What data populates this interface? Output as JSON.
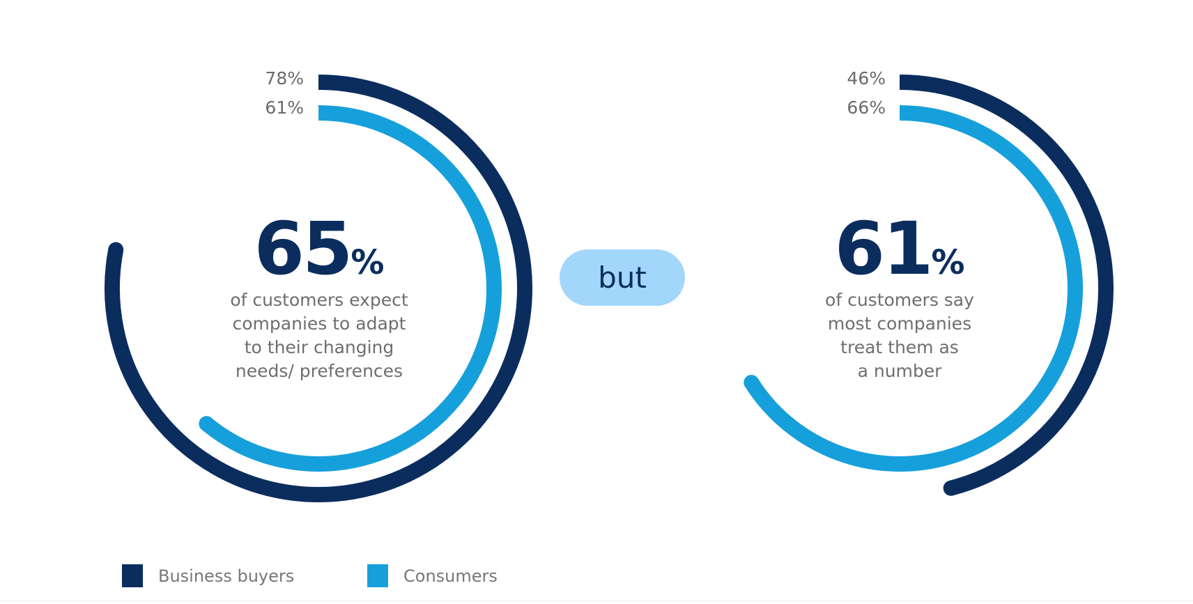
{
  "colors": {
    "business_buyers": "#0b2d5e",
    "consumers": "#16a0db",
    "but_pill": "#a3d6fb"
  },
  "chart_data": [
    {
      "type": "radial-bar",
      "headline": {
        "value": "65",
        "symbol": "%"
      },
      "description": [
        "of customers expect",
        "companies to adapt",
        "to their changing",
        "needs/ preferences"
      ],
      "series": [
        {
          "name": "Business buyers",
          "value": 78,
          "label": "78%"
        },
        {
          "name": "Consumers",
          "value": 61,
          "label": "61%"
        }
      ]
    },
    {
      "type": "radial-bar",
      "headline": {
        "value": "61",
        "symbol": "%"
      },
      "description": [
        "of customers say",
        "most companies",
        "treat them as",
        "a number"
      ],
      "series": [
        {
          "name": "Business buyers",
          "value": 46,
          "label": "46%"
        },
        {
          "name": "Consumers",
          "value": 66,
          "label": "66%"
        }
      ]
    }
  ],
  "connector": "but",
  "legend": [
    {
      "label": "Business buyers",
      "color": "#0b2d5e"
    },
    {
      "label": "Consumers",
      "color": "#16a0db"
    }
  ]
}
